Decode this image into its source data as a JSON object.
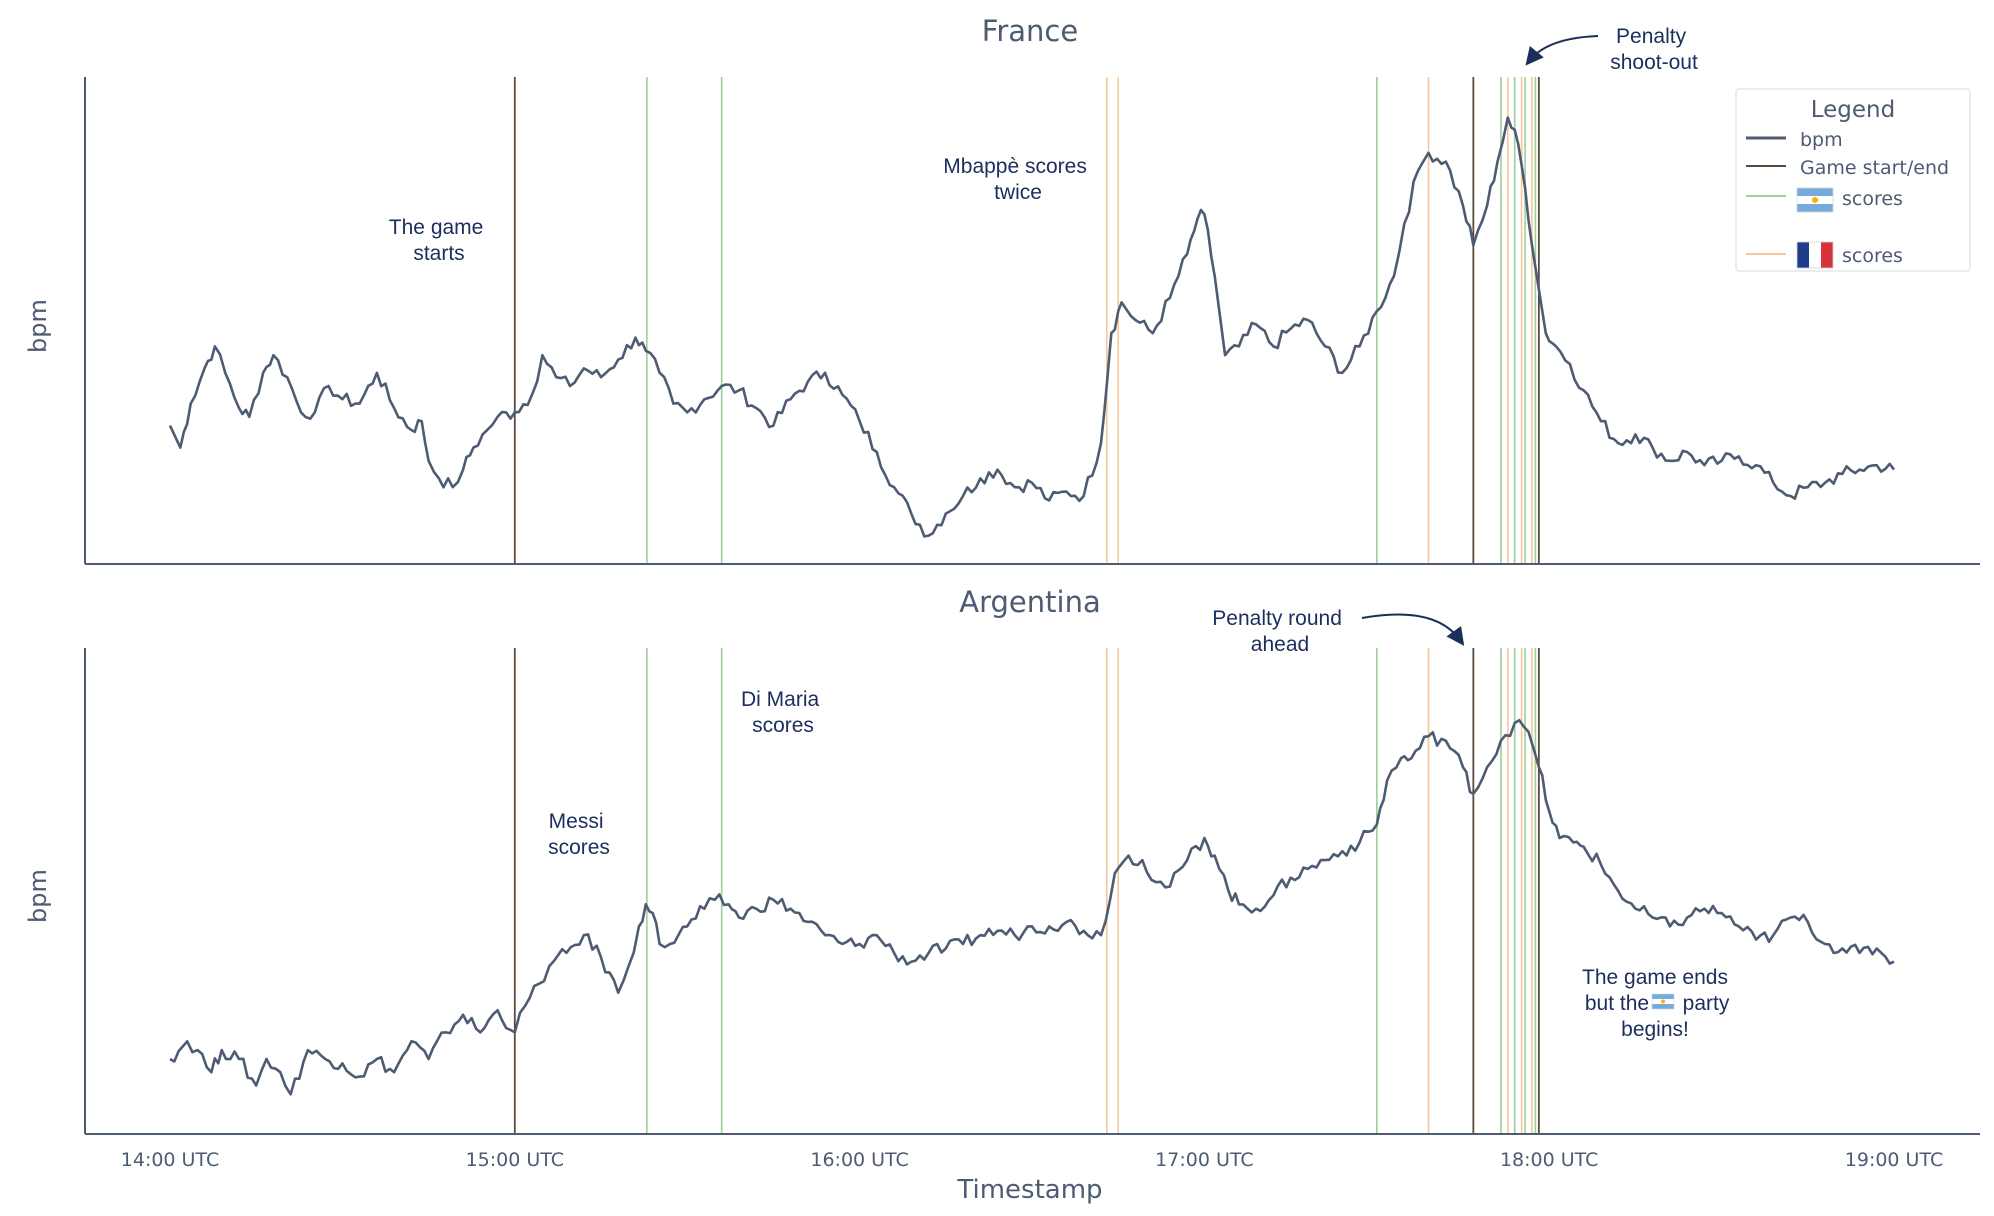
{
  "chart_data": {
    "type": "line",
    "xlabel": "Timestamp",
    "x_ticks": [
      "14:00 UTC",
      "15:00 UTC",
      "16:00 UTC",
      "17:00 UTC",
      "18:00 UTC",
      "19:00 UTC"
    ],
    "x_range_hours": [
      14,
      19
    ],
    "legend": {
      "title": "Legend",
      "placement": "top-right",
      "items": [
        {
          "label": "bpm",
          "color": "#4d5b73",
          "kind": "line"
        },
        {
          "label": "Game start/end",
          "color": "#5c4a3c",
          "kind": "vline"
        },
        {
          "label": "scores",
          "flag": "argentina",
          "color": "#9ecf97",
          "kind": "vline"
        },
        {
          "label": "scores",
          "flag": "france",
          "color": "#f6c79a",
          "kind": "vline"
        }
      ]
    },
    "colors": {
      "bpm": "#4d5b73",
      "game": "#5c4a3c",
      "argentina_goal": "#9ecf97",
      "france_goal": "#f6c79a",
      "axis": "#4d5b73",
      "annotation": "#1c2e5c"
    },
    "events": {
      "game": [
        15.0,
        17.78,
        17.97
      ],
      "argentina_goals": [
        15.383,
        15.6,
        17.5,
        17.86,
        17.9,
        17.93,
        17.96
      ],
      "france_goals": [
        16.717,
        16.75,
        17.65,
        17.88,
        17.92,
        17.95
      ]
    },
    "panels": [
      {
        "title": "France",
        "ylabel": "bpm",
        "ylim": [
          0,
          100
        ],
        "series": {
          "name": "bpm",
          "keypoints": [
            [
              14.0,
              26
            ],
            [
              14.03,
              21
            ],
            [
              14.06,
              31
            ],
            [
              14.1,
              39
            ],
            [
              14.13,
              44
            ],
            [
              14.16,
              38
            ],
            [
              14.2,
              30
            ],
            [
              14.23,
              28
            ],
            [
              14.27,
              38
            ],
            [
              14.3,
              42
            ],
            [
              14.34,
              37
            ],
            [
              14.38,
              29
            ],
            [
              14.42,
              29
            ],
            [
              14.46,
              35
            ],
            [
              14.5,
              32
            ],
            [
              14.55,
              31
            ],
            [
              14.6,
              38
            ],
            [
              14.65,
              30
            ],
            [
              14.7,
              25
            ],
            [
              14.73,
              27
            ],
            [
              14.75,
              18
            ],
            [
              14.78,
              14
            ],
            [
              14.82,
              12
            ],
            [
              14.85,
              16
            ],
            [
              14.88,
              21
            ],
            [
              14.92,
              25
            ],
            [
              14.95,
              28
            ],
            [
              15.0,
              29
            ],
            [
              15.05,
              33
            ],
            [
              15.08,
              42
            ],
            [
              15.12,
              37
            ],
            [
              15.16,
              35
            ],
            [
              15.2,
              39
            ],
            [
              15.25,
              37
            ],
            [
              15.3,
              41
            ],
            [
              15.35,
              46
            ],
            [
              15.38,
              43
            ],
            [
              15.42,
              38
            ],
            [
              15.46,
              31
            ],
            [
              15.5,
              29
            ],
            [
              15.55,
              32
            ],
            [
              15.6,
              35
            ],
            [
              15.65,
              34
            ],
            [
              15.7,
              30
            ],
            [
              15.75,
              26
            ],
            [
              15.8,
              32
            ],
            [
              15.85,
              36
            ],
            [
              15.9,
              38
            ],
            [
              15.95,
              33
            ],
            [
              16.0,
              27
            ],
            [
              16.05,
              20
            ],
            [
              16.1,
              12
            ],
            [
              16.15,
              6
            ],
            [
              16.2,
              1
            ],
            [
              16.25,
              6
            ],
            [
              16.3,
              10
            ],
            [
              16.35,
              14
            ],
            [
              16.4,
              16
            ],
            [
              16.45,
              12
            ],
            [
              16.5,
              13
            ],
            [
              16.55,
              9
            ],
            [
              16.6,
              11
            ],
            [
              16.65,
              10
            ],
            [
              16.7,
              22
            ],
            [
              16.73,
              47
            ],
            [
              16.76,
              54
            ],
            [
              16.8,
              50
            ],
            [
              16.85,
              47
            ],
            [
              16.9,
              55
            ],
            [
              16.95,
              65
            ],
            [
              16.98,
              73
            ],
            [
              17.0,
              74
            ],
            [
              17.03,
              60
            ],
            [
              17.06,
              42
            ],
            [
              17.1,
              44
            ],
            [
              17.15,
              49
            ],
            [
              17.2,
              44
            ],
            [
              17.25,
              48
            ],
            [
              17.3,
              50
            ],
            [
              17.35,
              44
            ],
            [
              17.4,
              38
            ],
            [
              17.45,
              44
            ],
            [
              17.5,
              52
            ],
            [
              17.55,
              60
            ],
            [
              17.58,
              72
            ],
            [
              17.62,
              84
            ],
            [
              17.65,
              88
            ],
            [
              17.7,
              86
            ],
            [
              17.75,
              76
            ],
            [
              17.78,
              67
            ],
            [
              17.82,
              76
            ],
            [
              17.85,
              86
            ],
            [
              17.88,
              96
            ],
            [
              17.91,
              90
            ],
            [
              17.93,
              80
            ],
            [
              17.96,
              62
            ],
            [
              17.99,
              47
            ],
            [
              18.02,
              44
            ],
            [
              18.06,
              40
            ],
            [
              18.1,
              34
            ],
            [
              18.15,
              27
            ],
            [
              18.2,
              22
            ],
            [
              18.25,
              24
            ],
            [
              18.3,
              21
            ],
            [
              18.35,
              18
            ],
            [
              18.4,
              20
            ],
            [
              18.45,
              17
            ],
            [
              18.5,
              18
            ],
            [
              18.55,
              19
            ],
            [
              18.6,
              17
            ],
            [
              18.65,
              13
            ],
            [
              18.7,
              10
            ],
            [
              18.75,
              12
            ],
            [
              18.8,
              13
            ],
            [
              18.85,
              15
            ],
            [
              18.9,
              16
            ],
            [
              18.95,
              17
            ],
            [
              19.0,
              16
            ]
          ]
        },
        "annotations": [
          {
            "lines": [
              "The game",
              "starts"
            ]
          },
          {
            "lines": [
              "Mbappè scores",
              "twice"
            ]
          },
          {
            "lines": [
              "Penalty",
              "shoot-out"
            ]
          }
        ]
      },
      {
        "title": "Argentina",
        "ylabel": "bpm",
        "ylim": [
          0,
          100
        ],
        "series": {
          "name": "bpm",
          "keypoints": [
            [
              14.0,
              12
            ],
            [
              14.05,
              16
            ],
            [
              14.08,
              14
            ],
            [
              14.12,
              9
            ],
            [
              14.15,
              14
            ],
            [
              14.2,
              12
            ],
            [
              14.25,
              6
            ],
            [
              14.28,
              12
            ],
            [
              14.32,
              9
            ],
            [
              14.35,
              4
            ],
            [
              14.4,
              14
            ],
            [
              14.45,
              12
            ],
            [
              14.5,
              11
            ],
            [
              14.55,
              8
            ],
            [
              14.6,
              12
            ],
            [
              14.65,
              9
            ],
            [
              14.7,
              16
            ],
            [
              14.75,
              12
            ],
            [
              14.8,
              18
            ],
            [
              14.85,
              22
            ],
            [
              14.9,
              18
            ],
            [
              14.95,
              23
            ],
            [
              15.0,
              18
            ],
            [
              15.03,
              24
            ],
            [
              15.07,
              29
            ],
            [
              15.1,
              33
            ],
            [
              15.15,
              36
            ],
            [
              15.2,
              40
            ],
            [
              15.25,
              35
            ],
            [
              15.3,
              27
            ],
            [
              15.33,
              33
            ],
            [
              15.36,
              42
            ],
            [
              15.38,
              47
            ],
            [
              15.4,
              45
            ],
            [
              15.42,
              38
            ],
            [
              15.45,
              38
            ],
            [
              15.5,
              42
            ],
            [
              15.55,
              46
            ],
            [
              15.58,
              48
            ],
            [
              15.62,
              47
            ],
            [
              15.65,
              44
            ],
            [
              15.7,
              46
            ],
            [
              15.75,
              48
            ],
            [
              15.8,
              46
            ],
            [
              15.85,
              43
            ],
            [
              15.9,
              40
            ],
            [
              15.95,
              38
            ],
            [
              16.0,
              38
            ],
            [
              16.05,
              40
            ],
            [
              16.1,
              36
            ],
            [
              16.15,
              34
            ],
            [
              16.2,
              36
            ],
            [
              16.25,
              37
            ],
            [
              16.3,
              38
            ],
            [
              16.35,
              40
            ],
            [
              16.4,
              41
            ],
            [
              16.45,
              40
            ],
            [
              16.5,
              42
            ],
            [
              16.55,
              42
            ],
            [
              16.6,
              43
            ],
            [
              16.65,
              41
            ],
            [
              16.7,
              40
            ],
            [
              16.74,
              54
            ],
            [
              16.78,
              58
            ],
            [
              16.82,
              57
            ],
            [
              16.86,
              52
            ],
            [
              16.9,
              51
            ],
            [
              16.95,
              57
            ],
            [
              17.0,
              62
            ],
            [
              17.03,
              58
            ],
            [
              17.07,
              50
            ],
            [
              17.1,
              47
            ],
            [
              17.15,
              46
            ],
            [
              17.2,
              49
            ],
            [
              17.25,
              53
            ],
            [
              17.3,
              55
            ],
            [
              17.35,
              57
            ],
            [
              17.4,
              59
            ],
            [
              17.45,
              61
            ],
            [
              17.5,
              65
            ],
            [
              17.53,
              75
            ],
            [
              17.57,
              80
            ],
            [
              17.6,
              80
            ],
            [
              17.65,
              85
            ],
            [
              17.7,
              84
            ],
            [
              17.75,
              78
            ],
            [
              17.78,
              72
            ],
            [
              17.82,
              78
            ],
            [
              17.86,
              84
            ],
            [
              17.9,
              88
            ],
            [
              17.94,
              86
            ],
            [
              17.97,
              78
            ],
            [
              18.0,
              68
            ],
            [
              18.03,
              62
            ],
            [
              18.07,
              61
            ],
            [
              18.1,
              60
            ],
            [
              18.15,
              56
            ],
            [
              18.2,
              50
            ],
            [
              18.25,
              46
            ],
            [
              18.3,
              44
            ],
            [
              18.35,
              42
            ],
            [
              18.4,
              44
            ],
            [
              18.45,
              46
            ],
            [
              18.5,
              45
            ],
            [
              18.55,
              42
            ],
            [
              18.6,
              39
            ],
            [
              18.65,
              40
            ],
            [
              18.7,
              44
            ],
            [
              18.75,
              43
            ],
            [
              18.8,
              38
            ],
            [
              18.85,
              37
            ],
            [
              18.9,
              36
            ],
            [
              18.95,
              37
            ],
            [
              19.0,
              34
            ]
          ]
        },
        "annotations": [
          {
            "lines": [
              "Messi",
              "scores"
            ]
          },
          {
            "lines": [
              "Di Maria",
              "scores"
            ]
          },
          {
            "lines": [
              "Penalty round",
              "ahead"
            ]
          },
          {
            "lines": [
              "The game ends",
              "but the ",
              " party"
            ],
            "flag_inline": "argentina"
          },
          {
            "lines_extra": [
              "begins!"
            ]
          }
        ]
      }
    ]
  }
}
